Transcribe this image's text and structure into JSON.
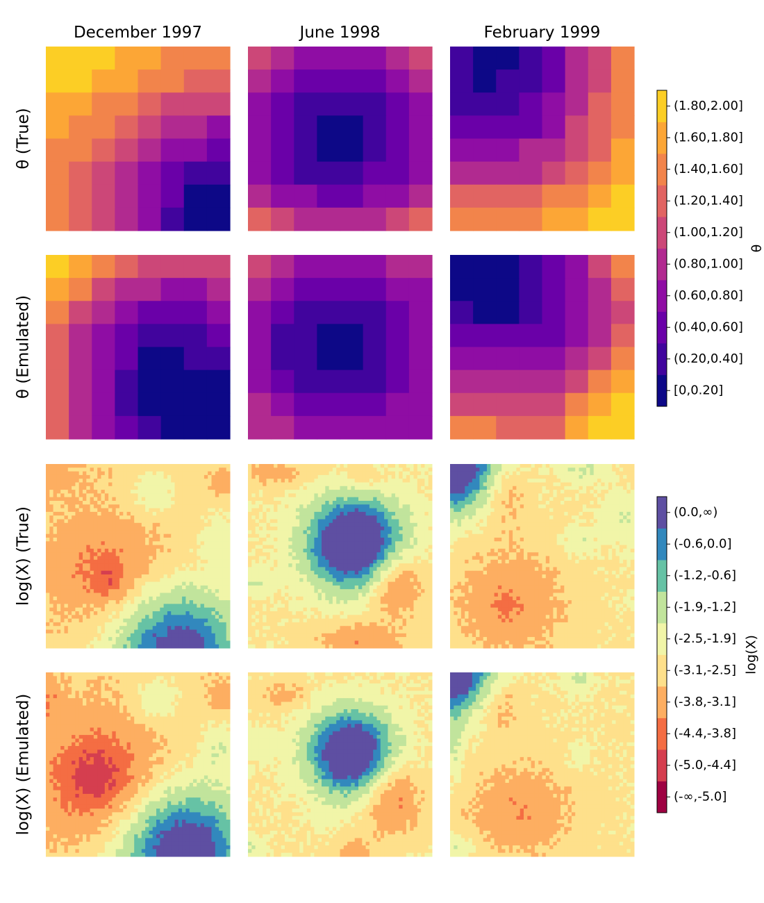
{
  "figure": {
    "column_titles": [
      "December 1997",
      "June 1998",
      "February 1999"
    ],
    "row_labels": [
      "θ (True)",
      "θ (Emulated)",
      "log(X) (True)",
      "log(X) (Emulated)"
    ]
  },
  "chart_data": [
    {
      "type": "heatmap",
      "panel": "theta",
      "rows": [
        "θ (True)",
        "θ (Emulated)"
      ],
      "columns": [
        "December 1997",
        "June 1998",
        "February 1999"
      ],
      "grid_size": [
        8,
        8
      ],
      "colorbar": {
        "label": "θ",
        "bins": [
          "[0,0.20]",
          "(0.20,0.40]",
          "(0.40,0.60]",
          "(0.60,0.80]",
          "(0.80,1.00]",
          "(1.00,1.20]",
          "(1.20,1.40]",
          "(1.40,1.60]",
          "(1.60,1.80]",
          "(1.80,2.00]"
        ],
        "colors": [
          "#0d0887",
          "#41049d",
          "#6a00a8",
          "#8f0da4",
          "#b12a90",
          "#cc4778",
          "#e16462",
          "#f2844b",
          "#fca636",
          "#fcce25"
        ]
      },
      "values": {
        "θ (True)": {
          "December 1997": [
            [
              9,
              9,
              9,
              8,
              8,
              7,
              7,
              7
            ],
            [
              9,
              9,
              8,
              8,
              7,
              7,
              6,
              6
            ],
            [
              8,
              8,
              7,
              7,
              6,
              5,
              5,
              5
            ],
            [
              8,
              7,
              7,
              6,
              5,
              4,
              4,
              3
            ],
            [
              7,
              7,
              6,
              5,
              4,
              3,
              3,
              2
            ],
            [
              7,
              6,
              5,
              4,
              3,
              2,
              1,
              1
            ],
            [
              7,
              6,
              5,
              4,
              3,
              2,
              0,
              0
            ],
            [
              7,
              6,
              5,
              4,
              3,
              1,
              0,
              0
            ]
          ],
          "June 1998": [
            [
              5,
              4,
              3,
              3,
              3,
              3,
              4,
              5
            ],
            [
              4,
              3,
              2,
              2,
              2,
              2,
              3,
              4
            ],
            [
              3,
              2,
              1,
              1,
              1,
              1,
              2,
              3
            ],
            [
              3,
              2,
              1,
              0,
              0,
              1,
              2,
              3
            ],
            [
              3,
              2,
              1,
              0,
              0,
              1,
              2,
              3
            ],
            [
              3,
              2,
              1,
              1,
              1,
              2,
              2,
              3
            ],
            [
              4,
              3,
              3,
              2,
              2,
              3,
              3,
              4
            ],
            [
              6,
              5,
              4,
              4,
              4,
              4,
              5,
              6
            ]
          ],
          "February 1999": [
            [
              1,
              0,
              0,
              1,
              2,
              4,
              5,
              7
            ],
            [
              1,
              0,
              1,
              1,
              2,
              4,
              5,
              7
            ],
            [
              1,
              1,
              1,
              2,
              3,
              4,
              6,
              7
            ],
            [
              2,
              2,
              2,
              2,
              3,
              5,
              6,
              7
            ],
            [
              3,
              3,
              3,
              4,
              4,
              5,
              6,
              8
            ],
            [
              4,
              4,
              4,
              4,
              5,
              6,
              7,
              8
            ],
            [
              6,
              6,
              6,
              6,
              7,
              7,
              8,
              9
            ],
            [
              7,
              7,
              7,
              7,
              8,
              8,
              9,
              9
            ]
          ]
        },
        "θ (Emulated)": {
          "December 1997": [
            [
              9,
              8,
              7,
              6,
              5,
              5,
              5,
              5
            ],
            [
              8,
              7,
              5,
              4,
              4,
              3,
              3,
              4
            ],
            [
              7,
              5,
              4,
              3,
              2,
              2,
              2,
              3
            ],
            [
              6,
              4,
              3,
              2,
              1,
              1,
              1,
              2
            ],
            [
              6,
              4,
              3,
              2,
              0,
              0,
              1,
              1
            ],
            [
              6,
              4,
              3,
              1,
              0,
              0,
              0,
              0
            ],
            [
              6,
              4,
              3,
              1,
              0,
              0,
              0,
              0
            ],
            [
              6,
              4,
              3,
              2,
              1,
              0,
              0,
              0
            ]
          ],
          "June 1998": [
            [
              5,
              4,
              3,
              3,
              3,
              3,
              4,
              4
            ],
            [
              4,
              3,
              2,
              2,
              2,
              2,
              3,
              3
            ],
            [
              3,
              2,
              1,
              1,
              1,
              1,
              2,
              3
            ],
            [
              3,
              1,
              1,
              0,
              0,
              1,
              2,
              3
            ],
            [
              3,
              1,
              1,
              0,
              0,
              1,
              2,
              3
            ],
            [
              3,
              2,
              1,
              1,
              1,
              1,
              2,
              3
            ],
            [
              4,
              3,
              2,
              2,
              2,
              2,
              3,
              3
            ],
            [
              4,
              4,
              3,
              3,
              3,
              3,
              3,
              3
            ]
          ],
          "February 1999": [
            [
              0,
              0,
              0,
              1,
              2,
              3,
              5,
              7
            ],
            [
              0,
              0,
              0,
              1,
              2,
              3,
              4,
              6
            ],
            [
              1,
              0,
              0,
              1,
              2,
              3,
              4,
              5
            ],
            [
              2,
              2,
              2,
              2,
              2,
              3,
              4,
              6
            ],
            [
              3,
              3,
              3,
              3,
              3,
              4,
              5,
              7
            ],
            [
              4,
              4,
              4,
              4,
              4,
              5,
              7,
              8
            ],
            [
              5,
              5,
              5,
              5,
              5,
              7,
              8,
              9
            ],
            [
              7,
              7,
              6,
              6,
              6,
              8,
              9,
              9
            ]
          ]
        }
      }
    },
    {
      "type": "heatmap",
      "panel": "logX",
      "rows": [
        "log(X) (True)",
        "log(X) (Emulated)"
      ],
      "columns": [
        "December 1997",
        "June 1998",
        "February 1999"
      ],
      "grid_size": [
        50,
        50
      ],
      "colorbar": {
        "label": "log(X)",
        "bins": [
          "(-∞,-5.0]",
          "(-5.0,-4.4]",
          "(-4.4,-3.8]",
          "(-3.8,-3.1]",
          "(-3.1,-2.5]",
          "(-2.5,-1.9]",
          "(-1.9,-1.2]",
          "(-1.2,-0.6]",
          "(-0.6,0.0]",
          "(0.0,∞)"
        ],
        "colors": [
          "#9e0142",
          "#d53e4f",
          "#f46d43",
          "#fdae61",
          "#fee08b",
          "#f1f5a8",
          "#c1e49c",
          "#66c2a5",
          "#3288bd",
          "#5e4fa2"
        ]
      },
      "field_spec": {
        "log(X) (True)": {
          "December 1997": {
            "base": -2.9,
            "bumps": [
              {
                "x": 0.32,
                "y": 0.57,
                "rx": 0.23,
                "ry": 0.2,
                "a": -1.05
              },
              {
                "x": 0.34,
                "y": 0.64,
                "rx": 0.06,
                "ry": 0.06,
                "a": -0.8
              },
              {
                "x": 0.72,
                "y": 1.02,
                "rx": 0.24,
                "ry": 0.24,
                "a": 3.5
              },
              {
                "x": 0.58,
                "y": 0.15,
                "rx": 0.09,
                "ry": 0.09,
                "a": 0.9
              },
              {
                "x": 0.05,
                "y": 0.06,
                "rx": 0.12,
                "ry": 0.08,
                "a": -0.5
              },
              {
                "x": 0.95,
                "y": 0.4,
                "rx": 0.08,
                "ry": 0.12,
                "a": 0.8
              },
              {
                "x": 0.96,
                "y": 0.1,
                "rx": 0.05,
                "ry": 0.05,
                "a": -0.7
              }
            ]
          },
          "June 1998": {
            "base": -2.6,
            "bumps": [
              {
                "x": 0.58,
                "y": 0.43,
                "rx": 0.18,
                "ry": 0.17,
                "a": 4.3
              },
              {
                "x": 0.8,
                "y": 0.64,
                "rx": 0.11,
                "ry": 0.13,
                "a": -1.6
              },
              {
                "x": 0.6,
                "y": 0.97,
                "rx": 0.16,
                "ry": 0.08,
                "a": -1.1
              },
              {
                "x": 0.15,
                "y": 0.05,
                "rx": 0.15,
                "ry": 0.05,
                "a": -0.8
              },
              {
                "x": 0.62,
                "y": 0.08,
                "rx": 0.07,
                "ry": 0.05,
                "a": -0.7
              },
              {
                "x": 0.05,
                "y": 0.65,
                "rx": 0.06,
                "ry": 0.06,
                "a": 0.7
              }
            ]
          },
          "February 1999": {
            "base": -2.6,
            "bumps": [
              {
                "x": -0.02,
                "y": -0.02,
                "rx": 0.18,
                "ry": 0.18,
                "a": 4.5
              },
              {
                "x": 0.32,
                "y": 0.75,
                "rx": 0.22,
                "ry": 0.21,
                "a": -1.1
              },
              {
                "x": 0.3,
                "y": 0.78,
                "rx": 0.05,
                "ry": 0.05,
                "a": -0.4
              },
              {
                "x": 0.3,
                "y": 0.16,
                "rx": 0.08,
                "ry": 0.14,
                "a": -0.9
              },
              {
                "x": 0.72,
                "y": 0.03,
                "rx": 0.08,
                "ry": 0.05,
                "a": 0.8
              },
              {
                "x": 0.7,
                "y": 0.42,
                "rx": 0.06,
                "ry": 0.06,
                "a": 0.7
              },
              {
                "x": 0.95,
                "y": 0.3,
                "rx": 0.1,
                "ry": 0.1,
                "a": 0.6
              }
            ]
          }
        },
        "log(X) (Emulated)": {
          "December 1997": {
            "base": -2.9,
            "bumps": [
              {
                "x": 0.28,
                "y": 0.57,
                "rx": 0.23,
                "ry": 0.23,
                "a": -1.5
              },
              {
                "x": 0.28,
                "y": 0.58,
                "rx": 0.12,
                "ry": 0.11,
                "a": -0.5
              },
              {
                "x": 0.75,
                "y": 0.98,
                "rx": 0.24,
                "ry": 0.24,
                "a": 3.8
              },
              {
                "x": 0.6,
                "y": 0.15,
                "rx": 0.09,
                "ry": 0.09,
                "a": 0.9
              },
              {
                "x": 0.95,
                "y": 0.4,
                "rx": 0.07,
                "ry": 0.12,
                "a": 0.8
              },
              {
                "x": 0.96,
                "y": 0.13,
                "rx": 0.05,
                "ry": 0.06,
                "a": -0.8
              },
              {
                "x": 0.02,
                "y": 0.15,
                "rx": 0.05,
                "ry": 0.1,
                "a": -0.7
              }
            ]
          },
          "June 1998": {
            "base": -2.6,
            "bumps": [
              {
                "x": 0.56,
                "y": 0.44,
                "rx": 0.16,
                "ry": 0.16,
                "a": 4.0
              },
              {
                "x": 0.78,
                "y": 0.67,
                "rx": 0.11,
                "ry": 0.14,
                "a": -1.5
              },
              {
                "x": 0.58,
                "y": 0.97,
                "rx": 0.07,
                "ry": 0.06,
                "a": -0.9
              },
              {
                "x": 0.2,
                "y": 0.12,
                "rx": 0.1,
                "ry": 0.05,
                "a": -0.8
              },
              {
                "x": 0.05,
                "y": 0.4,
                "rx": 0.06,
                "ry": 0.06,
                "a": 0.6
              },
              {
                "x": 0.02,
                "y": 0.95,
                "rx": 0.05,
                "ry": 0.05,
                "a": 0.7
              }
            ]
          },
          "February 1999": {
            "base": -2.6,
            "bumps": [
              {
                "x": -0.02,
                "y": -0.02,
                "rx": 0.16,
                "ry": 0.16,
                "a": 4.3
              },
              {
                "x": 0.38,
                "y": 0.75,
                "rx": 0.2,
                "ry": 0.18,
                "a": -1.1
              },
              {
                "x": 0.28,
                "y": 0.18,
                "rx": 0.08,
                "ry": 0.1,
                "a": -0.8
              },
              {
                "x": 0.7,
                "y": 0.03,
                "rx": 0.06,
                "ry": 0.05,
                "a": 0.8
              },
              {
                "x": 0.7,
                "y": 0.45,
                "rx": 0.05,
                "ry": 0.05,
                "a": 0.6
              },
              {
                "x": 0.02,
                "y": 0.4,
                "rx": 0.04,
                "ry": 0.15,
                "a": 0.7
              },
              {
                "x": 0.05,
                "y": 0.95,
                "rx": 0.07,
                "ry": 0.05,
                "a": 0.8
              }
            ]
          }
        }
      }
    }
  ]
}
